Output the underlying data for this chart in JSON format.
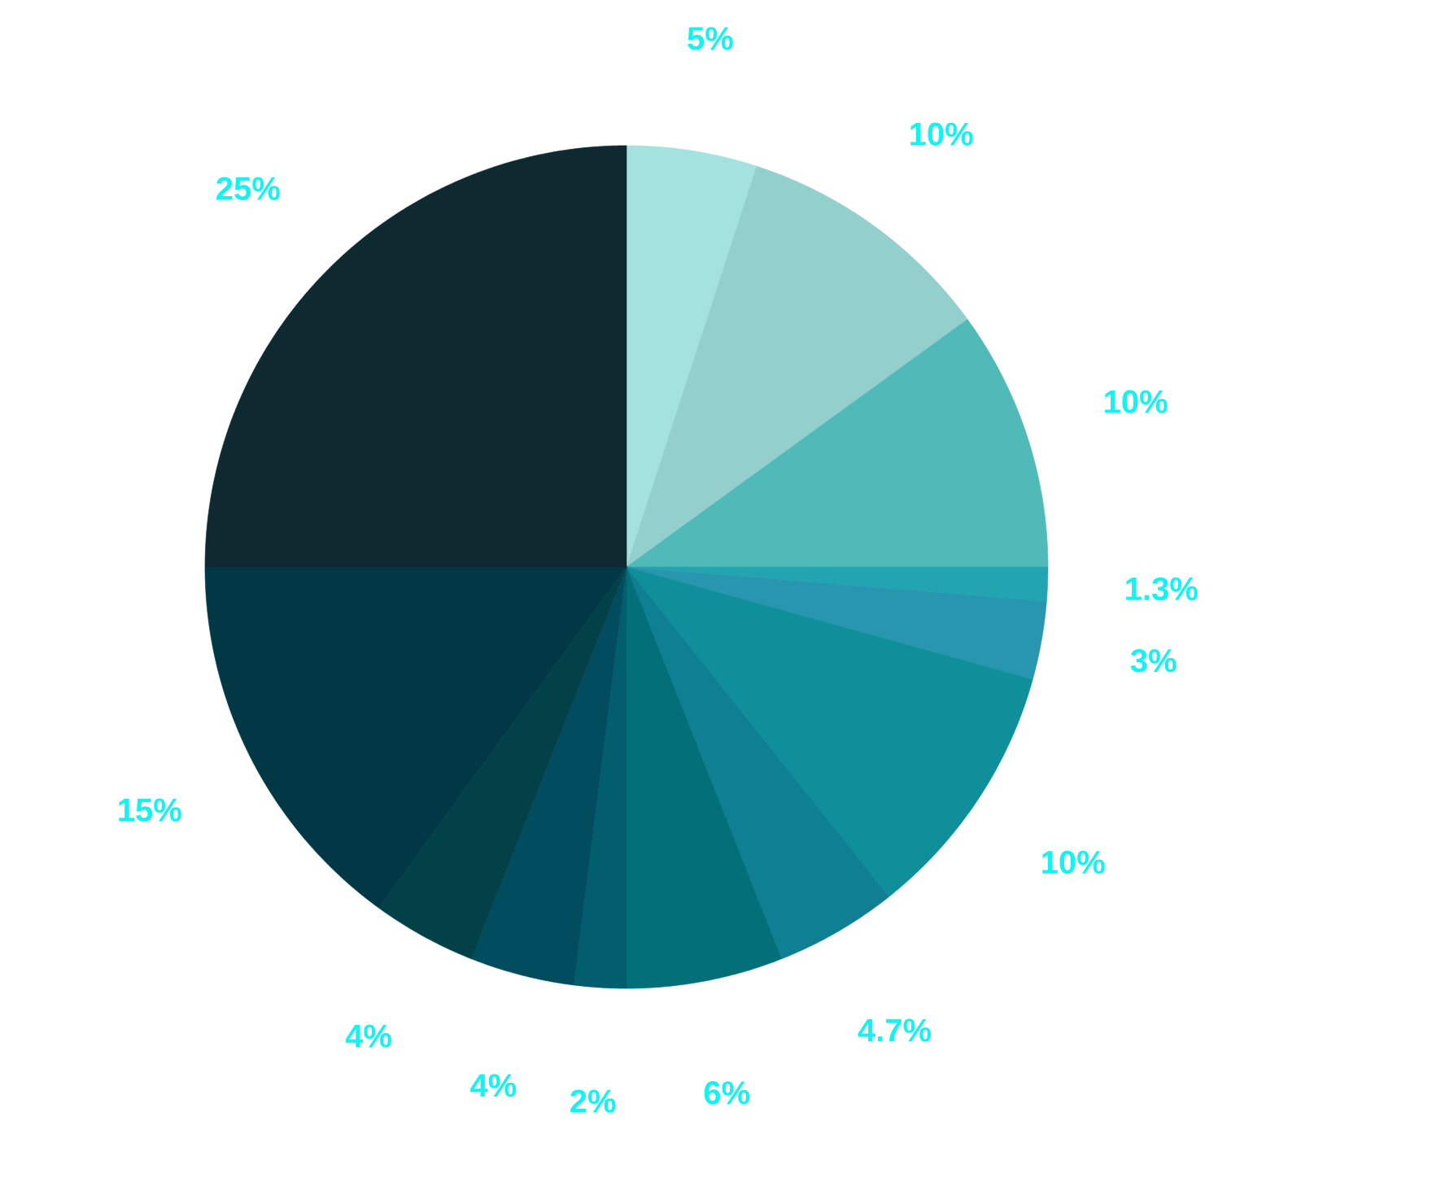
{
  "chart_data": {
    "type": "pie",
    "categories": [
      null,
      null,
      null,
      null,
      null,
      null,
      null,
      null,
      null,
      null,
      null,
      null,
      null
    ],
    "values": [
      5,
      10,
      10,
      1.3,
      3,
      10,
      4.7,
      6,
      2,
      4,
      4,
      15,
      25
    ],
    "colors": [
      "#a3e2df",
      "#93cfcd",
      "#4fbab8",
      "#22a5b0",
      "#2996b0",
      "#0f8f9a",
      "#0f7f93",
      "#037079",
      "#025e6e",
      "#024c60",
      "#024148",
      "#023845",
      "#0f2930"
    ],
    "value_labels": [
      "5%",
      "10%",
      "10%",
      "1.3%",
      "3%",
      "10%",
      "4.7%",
      "6%",
      "2%",
      "4%",
      "4%",
      "15%",
      "25%"
    ]
  }
}
